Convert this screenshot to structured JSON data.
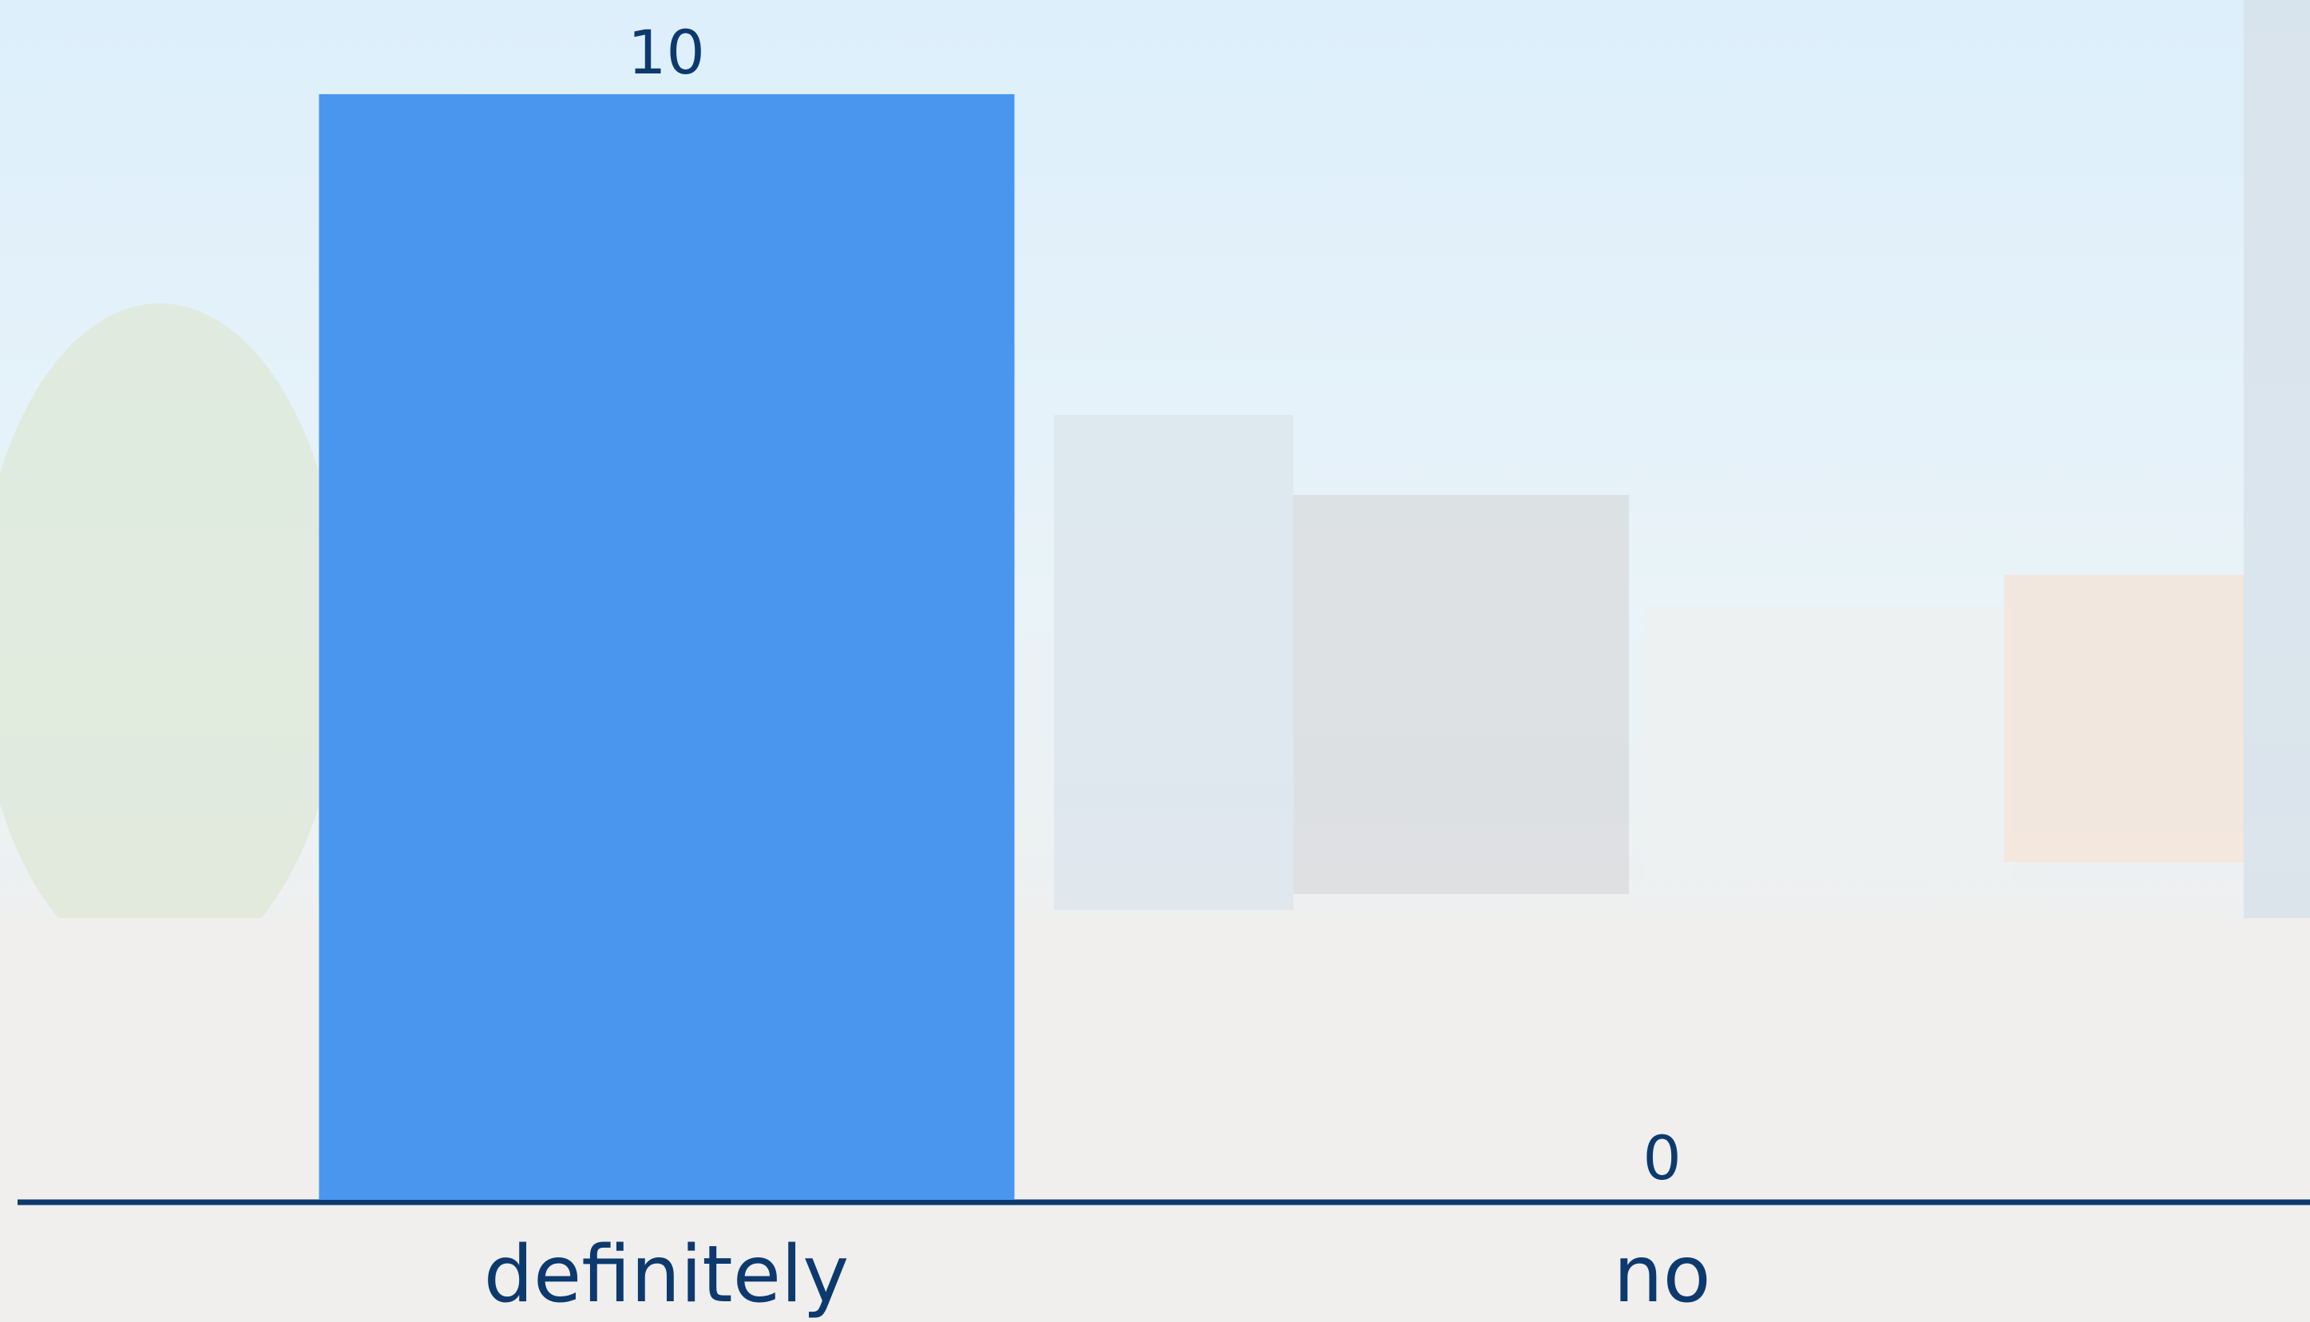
{
  "chart_data": {
    "type": "bar",
    "categories": [
      "definitely",
      "no"
    ],
    "values": [
      10,
      0
    ],
    "color": "#4a96ef"
  }
}
